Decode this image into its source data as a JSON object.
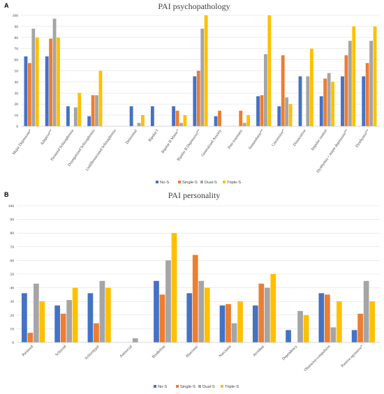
{
  "chart_data": [
    {
      "type": "bar",
      "panel": "A",
      "title": "PAI psychopathology",
      "ylim": [
        0,
        100
      ],
      "yticks": [
        0,
        10,
        20,
        30,
        40,
        50,
        60,
        70,
        80,
        90,
        100
      ],
      "categories": [
        "Major Depression*",
        "Adaptive**",
        "Paranoid Schizophrenia",
        "Disorganized Schizophrenia",
        "Undifferenciated Schizophrenia",
        "Delusional",
        "Bipolar I",
        "Bipolar II Manic*",
        "Bipolar II Depressive**",
        "Generalized Anxiety",
        "Post-traumatic",
        "Somatoform**",
        "Conversive*",
        "Dissociative",
        "Impulse control",
        "Dysthymia + major depression**",
        "Dysthymia**"
      ],
      "series": [
        {
          "name": "No-S",
          "color": "#4472C4",
          "values": [
            63,
            63,
            18,
            9,
            0,
            18,
            18,
            18,
            45,
            9,
            0,
            27,
            18,
            45,
            27,
            45,
            45
          ]
        },
        {
          "name": "Single-S",
          "color": "#ED7D31",
          "values": [
            57,
            79,
            0,
            28,
            0,
            0,
            0,
            14,
            50,
            14,
            14,
            28,
            64,
            0,
            43,
            64,
            57
          ]
        },
        {
          "name": "Dual-S",
          "color": "#A5A5A5",
          "values": [
            88,
            97,
            17,
            28,
            0,
            3,
            0,
            3,
            88,
            0,
            3,
            65,
            26,
            45,
            48,
            77,
            77
          ]
        },
        {
          "name": "Triple-S",
          "color": "#FFC000",
          "values": [
            80,
            80,
            30,
            50,
            0,
            10,
            0,
            10,
            100,
            0,
            10,
            100,
            20,
            70,
            40,
            90,
            90
          ]
        }
      ],
      "legend_position": "bottom-center"
    },
    {
      "type": "bar",
      "panel": "B",
      "title": "PAI personality",
      "ylim": [
        0,
        100
      ],
      "yticks": [
        0,
        10,
        20,
        30,
        40,
        50,
        60,
        70,
        80,
        90,
        100
      ],
      "categories": [
        "Paranoid",
        "Schizoid",
        "Schizotypal",
        "Antisocial",
        "Borderline",
        "Histrionic",
        "Narcissist",
        "Avoidant",
        "Dependency",
        "Obsessive-compulsive",
        "Passive-agressive*"
      ],
      "series": [
        {
          "name": "No-S",
          "color": "#4472C4",
          "values": [
            36,
            27,
            36,
            0,
            45,
            36,
            27,
            27,
            9,
            36,
            9
          ]
        },
        {
          "name": "Single-S",
          "color": "#ED7D31",
          "values": [
            7,
            21,
            14,
            0,
            35,
            64,
            28,
            43,
            0,
            35,
            21
          ]
        },
        {
          "name": "Dual-S",
          "color": "#A5A5A5",
          "values": [
            43,
            31,
            45,
            3,
            60,
            45,
            14,
            40,
            23,
            11,
            45
          ]
        },
        {
          "name": "Triple-S",
          "color": "#FFC000",
          "values": [
            30,
            40,
            40,
            0,
            80,
            40,
            30,
            50,
            20,
            30,
            30
          ]
        }
      ],
      "legend_position": "bottom-center"
    }
  ]
}
